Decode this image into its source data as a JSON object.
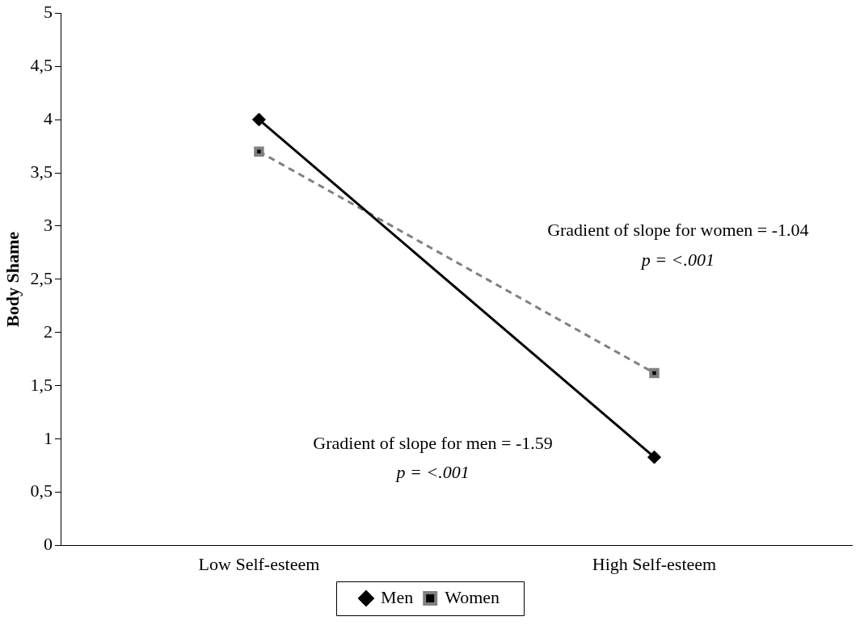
{
  "chart_data": {
    "type": "line",
    "ylabel": "Body Shame",
    "categories": [
      "Low Self-esteem",
      "High Self-esteem"
    ],
    "series": [
      {
        "name": "Men",
        "color": "#000000",
        "values": [
          4.0,
          0.83
        ],
        "marker": "diamond",
        "line_style": "solid"
      },
      {
        "name": "Women",
        "color": "#808080",
        "values": [
          3.7,
          1.62
        ],
        "marker": "square",
        "line_style": "dashed"
      }
    ],
    "ylim": [
      0,
      5
    ],
    "yticks": [
      0,
      {
        "value": 0.5,
        "label": "0,5"
      },
      1,
      {
        "value": 1.5,
        "label": "1,5"
      },
      2,
      {
        "value": 2.5,
        "label": "2,5"
      },
      3,
      {
        "value": 3.5,
        "label": "3,5"
      },
      4,
      {
        "value": 4.5,
        "label": "4,5"
      },
      5
    ],
    "annotations": [
      "Gradient of slope for women = -1.04",
      "p = <.001",
      "Gradient of slope for men = -1.59",
      "p = <.001"
    ],
    "grid": false,
    "legend": "bottom"
  }
}
